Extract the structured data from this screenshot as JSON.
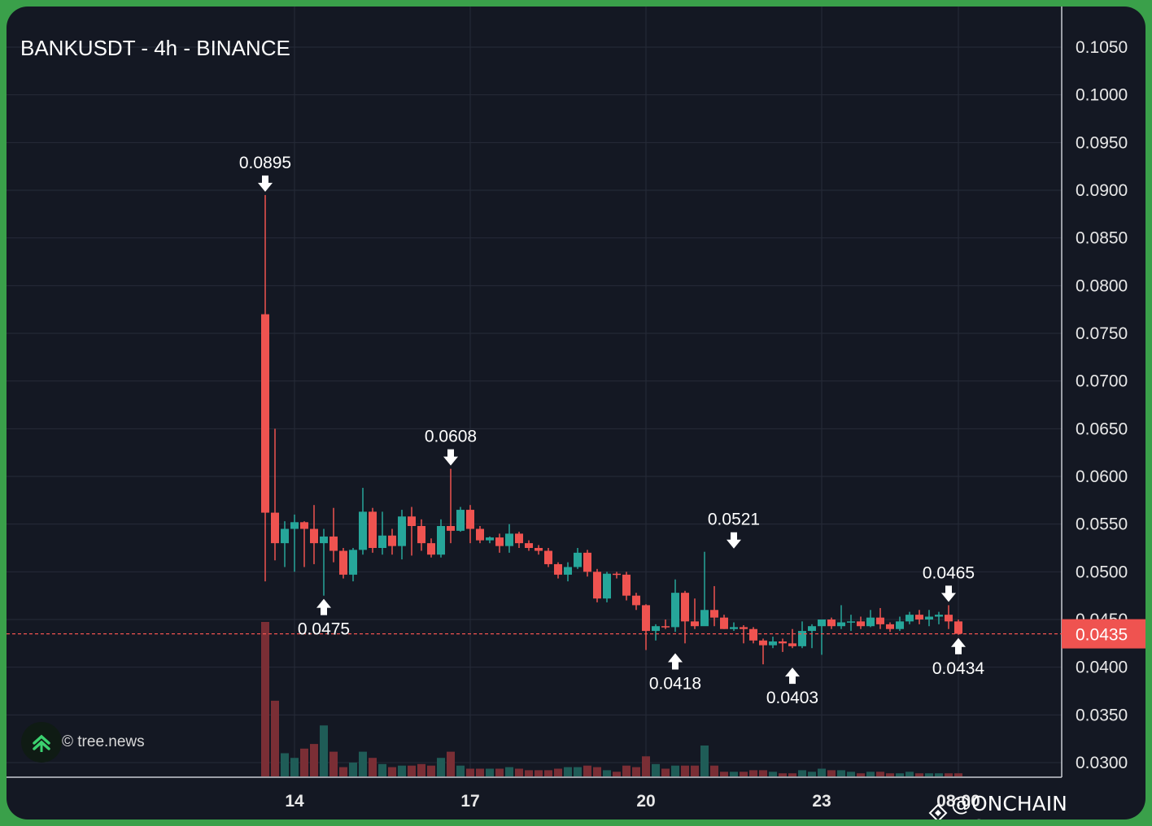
{
  "header": {
    "title": "BANKUSDT - 4h - BINANCE"
  },
  "watermark": {
    "text": "© tree.news",
    "icon": "tree-news-logo-icon"
  },
  "brand": {
    "text": "@ONCHAIN INSIDER",
    "icon": "binance-logo-icon"
  },
  "colors": {
    "up": "#26a69a",
    "down": "#ef5350",
    "background": "#141823",
    "grid": "#262b38",
    "price_tag": "#ef5350",
    "frame": "#3aa04a"
  },
  "chart_data": {
    "type": "candlestick",
    "title": "BANKUSDT - 4h - BINANCE",
    "xlabel": "",
    "ylabel": "",
    "ylim": [
      0.0282,
      0.108
    ],
    "y_ticks": [
      "0.1050",
      "0.1000",
      "0.0950",
      "0.0900",
      "0.0850",
      "0.0800",
      "0.0750",
      "0.0700",
      "0.0650",
      "0.0600",
      "0.0550",
      "0.0500",
      "0.0450",
      "0.0400",
      "0.0350",
      "0.0300"
    ],
    "x_ticks": [
      {
        "label": "14",
        "index": 1.5
      },
      {
        "label": "17",
        "index": 10.5
      },
      {
        "label": "20",
        "index": 19.5
      },
      {
        "label": "23",
        "index": 28.5
      },
      {
        "label": "08:00",
        "index": 35.5
      }
    ],
    "last_price": "0.0435",
    "last_price_value": 0.0435,
    "candles": [
      {
        "o": 0.077,
        "h": 0.0895,
        "l": 0.049,
        "c": 0.0562,
        "v": 1.0
      },
      {
        "o": 0.0562,
        "h": 0.065,
        "l": 0.0512,
        "c": 0.053,
        "v": 0.49
      },
      {
        "o": 0.053,
        "h": 0.0553,
        "l": 0.0505,
        "c": 0.0545,
        "v": 0.15
      },
      {
        "o": 0.0545,
        "h": 0.056,
        "l": 0.05,
        "c": 0.0552,
        "v": 0.12
      },
      {
        "o": 0.0552,
        "h": 0.0553,
        "l": 0.0505,
        "c": 0.0545,
        "v": 0.18
      },
      {
        "o": 0.0545,
        "h": 0.057,
        "l": 0.0508,
        "c": 0.053,
        "v": 0.21
      },
      {
        "o": 0.053,
        "h": 0.0545,
        "l": 0.0475,
        "c": 0.0537,
        "v": 0.33
      },
      {
        "o": 0.0537,
        "h": 0.0567,
        "l": 0.051,
        "c": 0.0522,
        "v": 0.16
      },
      {
        "o": 0.0522,
        "h": 0.0525,
        "l": 0.0493,
        "c": 0.0497,
        "v": 0.06
      },
      {
        "o": 0.0497,
        "h": 0.0525,
        "l": 0.049,
        "c": 0.0523,
        "v": 0.09
      },
      {
        "o": 0.0523,
        "h": 0.0588,
        "l": 0.0518,
        "c": 0.0563,
        "v": 0.16
      },
      {
        "o": 0.0563,
        "h": 0.0567,
        "l": 0.052,
        "c": 0.0525,
        "v": 0.12
      },
      {
        "o": 0.0525,
        "h": 0.0563,
        "l": 0.0518,
        "c": 0.0538,
        "v": 0.08
      },
      {
        "o": 0.0538,
        "h": 0.0545,
        "l": 0.0518,
        "c": 0.0527,
        "v": 0.06
      },
      {
        "o": 0.0527,
        "h": 0.0565,
        "l": 0.0513,
        "c": 0.0558,
        "v": 0.07
      },
      {
        "o": 0.0558,
        "h": 0.0568,
        "l": 0.0517,
        "c": 0.0548,
        "v": 0.07
      },
      {
        "o": 0.0548,
        "h": 0.0555,
        "l": 0.0522,
        "c": 0.053,
        "v": 0.08
      },
      {
        "o": 0.053,
        "h": 0.0535,
        "l": 0.0515,
        "c": 0.0518,
        "v": 0.07
      },
      {
        "o": 0.0518,
        "h": 0.0555,
        "l": 0.0515,
        "c": 0.0548,
        "v": 0.12
      },
      {
        "o": 0.0548,
        "h": 0.0608,
        "l": 0.053,
        "c": 0.0543,
        "v": 0.16
      },
      {
        "o": 0.0543,
        "h": 0.0568,
        "l": 0.0542,
        "c": 0.0565,
        "v": 0.07
      },
      {
        "o": 0.0565,
        "h": 0.057,
        "l": 0.053,
        "c": 0.0545,
        "v": 0.05
      },
      {
        "o": 0.0545,
        "h": 0.0548,
        "l": 0.053,
        "c": 0.0533,
        "v": 0.05
      },
      {
        "o": 0.0533,
        "h": 0.0537,
        "l": 0.053,
        "c": 0.0536,
        "v": 0.05
      }
    ],
    "volume_note": "volume bars beneath price, same colors as candles",
    "annotations": [
      {
        "text": "0.0895",
        "index": 0,
        "value": 0.0895,
        "dir": "down"
      },
      {
        "text": "0.0475",
        "index": 6,
        "value": 0.0475,
        "dir": "up"
      },
      {
        "text": "0.0608",
        "index": 19,
        "value": 0.0608,
        "dir": "down"
      },
      {
        "text": "0.0418",
        "index": 42,
        "value": 0.0418,
        "dir": "up"
      },
      {
        "text": "0.0521",
        "index": 48,
        "value": 0.0521,
        "dir": "down"
      },
      {
        "text": "0.0403",
        "index": 54,
        "value": 0.0403,
        "dir": "up"
      },
      {
        "text": "0.0465",
        "index": 70,
        "value": 0.0465,
        "dir": "down"
      },
      {
        "text": "0.0434",
        "index": 71,
        "value": 0.0434,
        "dir": "up"
      }
    ]
  }
}
